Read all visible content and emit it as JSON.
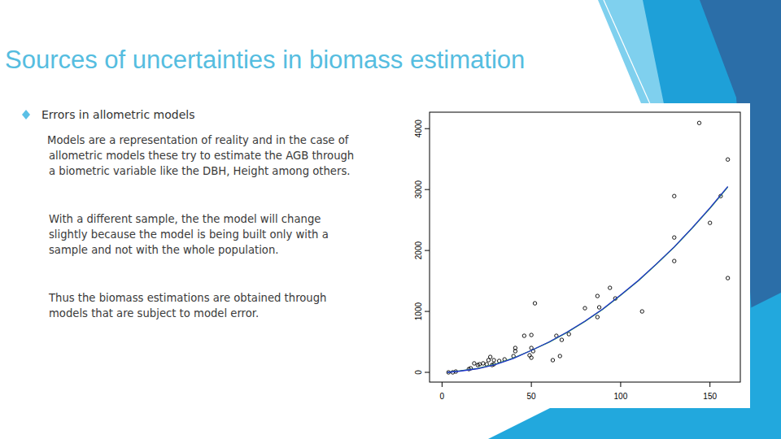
{
  "slide": {
    "title": "Sources of uncertainties in biomass estimation",
    "bullet": "Errors in allometric models",
    "paragraphs": [
      [
        "Models are a representation of reality and in the case of",
        "allometric models these try to estimate the AGB through",
        "a biometric variable like the DBH, Height among others."
      ],
      [
        "With a different sample, the the model will change",
        "slightly because the model is being built only with a",
        "sample and not with the whole population."
      ],
      [
        "Thus the biomass estimations are obtained through",
        "models that are subject to model error."
      ]
    ]
  },
  "chart_data": {
    "type": "scatter",
    "xlim": [
      -7,
      167
    ],
    "ylim": [
      -160,
      4270
    ],
    "xticks": [
      0,
      50,
      100,
      150
    ],
    "yticks": [
      0,
      1000,
      2000,
      3000,
      4000
    ],
    "series": [
      {
        "type": "scatter",
        "marker": "circle",
        "color": "#000000",
        "x": [
          3.6,
          6,
          7.7,
          15,
          16,
          18,
          20,
          21,
          23,
          25,
          26,
          27,
          28,
          29,
          29,
          32,
          35,
          40,
          41,
          41,
          46,
          49,
          50,
          50,
          51,
          52,
          50,
          62,
          64,
          66,
          67,
          71,
          80,
          87,
          87,
          88,
          94,
          97,
          112,
          130,
          130,
          130,
          144,
          150,
          156,
          160,
          160
        ],
        "values": [
          0,
          0,
          13,
          53,
          67,
          147,
          120,
          133,
          147,
          133,
          200,
          253,
          120,
          200,
          133,
          187,
          213,
          267,
          347,
          400,
          600,
          280,
          400,
          613,
          347,
          1133,
          240,
          200,
          600,
          267,
          533,
          627,
          1053,
          1253,
          907,
          1067,
          1387,
          1213,
          1000,
          1827,
          2213,
          2893,
          4093,
          2453,
          2893,
          3493,
          1547
        ]
      },
      {
        "type": "line",
        "line_style": "solid",
        "color": "#2e9e4f",
        "x": [
          3,
          10,
          20,
          30,
          40,
          50,
          60,
          70,
          80,
          90,
          100,
          110,
          120,
          130,
          140,
          150,
          160
        ],
        "values": [
          0,
          25,
          65,
          135,
          235,
          360,
          495,
          655,
          835,
          1035,
          1265,
          1505,
          1775,
          2055,
          2365,
          2690,
          3040
        ]
      },
      {
        "type": "line",
        "line_style": "solid",
        "color": "#2233cc",
        "x": [
          3,
          10,
          20,
          30,
          40,
          50,
          60,
          70,
          80,
          90,
          100,
          110,
          120,
          130,
          140,
          150,
          160
        ],
        "values": [
          0,
          20,
          60,
          130,
          230,
          360,
          500,
          660,
          840,
          1040,
          1270,
          1510,
          1780,
          2060,
          2370,
          2700,
          3050
        ]
      }
    ]
  }
}
